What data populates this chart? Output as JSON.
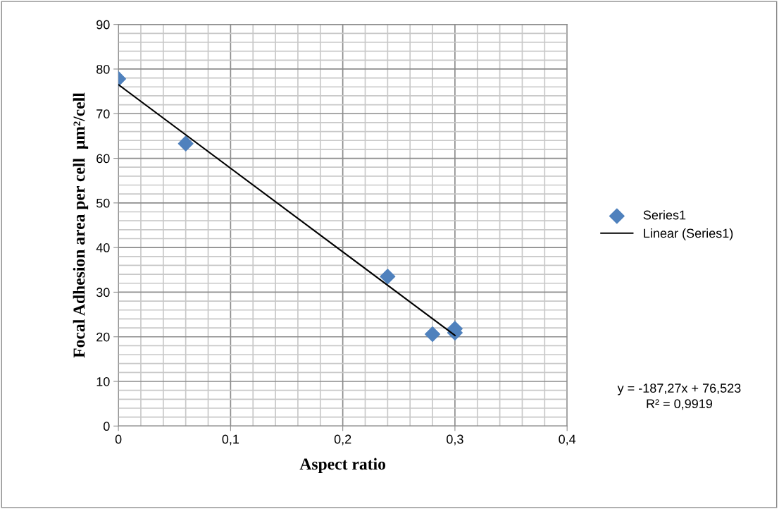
{
  "chart_data": {
    "type": "scatter",
    "xlabel": "Aspect ratio",
    "ylabel": "Focal Adhesion area per cell  µm²/cell",
    "x": [
      0,
      0.06,
      0.24,
      0.28,
      0.3,
      0.3
    ],
    "series": [
      {
        "name": "Series1",
        "color": "#4f81bd",
        "marker": "diamond",
        "values": [
          77.8,
          63.3,
          33.5,
          20.6,
          21.8,
          20.9
        ]
      },
      {
        "name": "Linear (Series1)",
        "type": "line",
        "color": "#000000",
        "marker": "none",
        "line_style": "solid",
        "x": [
          0,
          0.3
        ],
        "values": [
          76.5,
          20.3
        ]
      }
    ],
    "xlim": [
      0,
      0.4
    ],
    "xticks": [
      {
        "value": 0,
        "label": "0"
      },
      {
        "value": 0.1,
        "label": "0,1"
      },
      {
        "value": 0.2,
        "label": "0,2"
      },
      {
        "value": 0.3,
        "label": "0,3"
      },
      {
        "value": 0.4,
        "label": "0,4"
      }
    ],
    "ylim": [
      0,
      90
    ],
    "yticks": [
      0,
      10,
      20,
      30,
      40,
      50,
      60,
      70,
      80,
      90
    ],
    "grid": true,
    "legend": "right",
    "annotations": [
      "y = -187,27x + 76,523\nR² = 0,9919"
    ]
  }
}
